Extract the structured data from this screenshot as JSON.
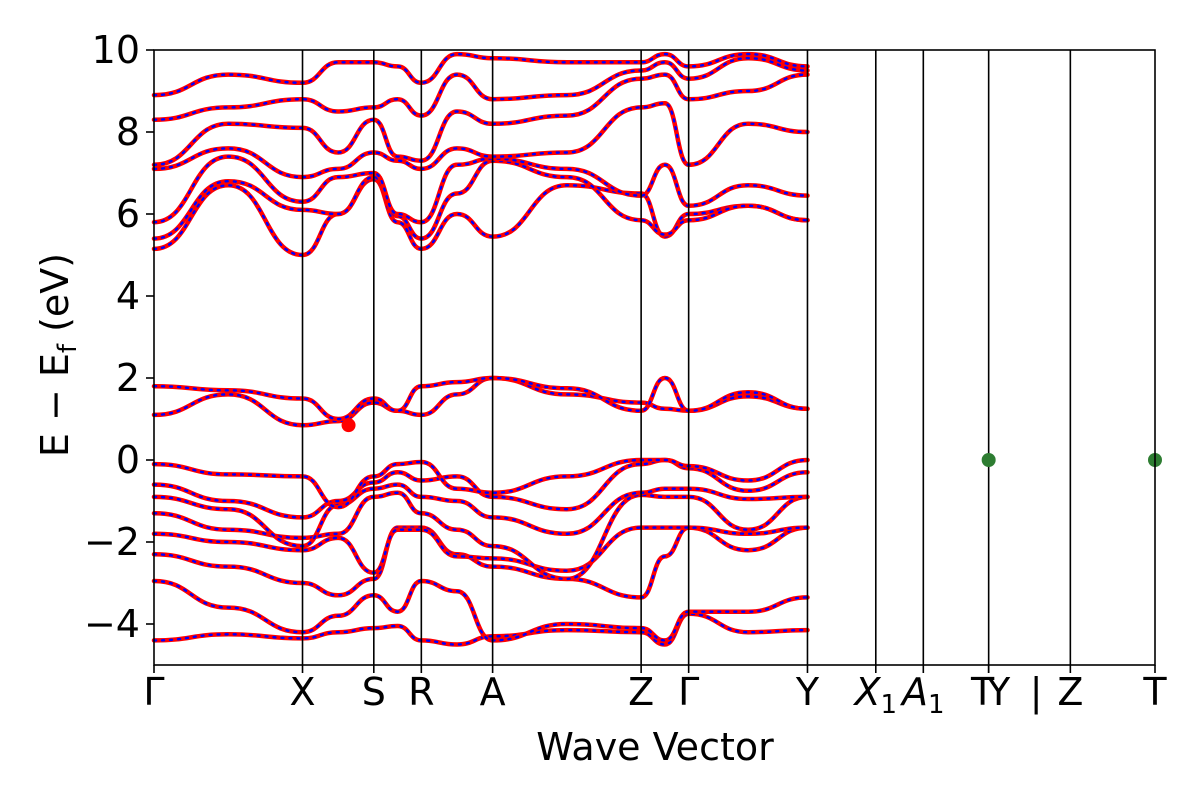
{
  "chart_data": {
    "type": "line",
    "xlabel": "Wave Vector",
    "ylabel": "E − E",
    "ylabel_subscript": "f",
    "ylabel_unit": "(eV)",
    "ylim": [
      -5,
      10
    ],
    "yticks": [
      -4,
      -2,
      0,
      2,
      4,
      6,
      8,
      10
    ],
    "ytick_labels": [
      "−4",
      "−2",
      "0",
      "2",
      "4",
      "6",
      "8",
      "10"
    ],
    "kpath": [
      {
        "label": "Γ",
        "x": 0.0
      },
      {
        "label": "X",
        "x": 1.0
      },
      {
        "label": "S",
        "x": 1.48
      },
      {
        "label": "R",
        "x": 1.8
      },
      {
        "label": "A",
        "x": 2.28
      },
      {
        "label": "Z",
        "x": 3.28
      },
      {
        "label": "Γ",
        "x": 3.6
      },
      {
        "label": "Y",
        "x": 4.4
      },
      {
        "label": "X",
        "sub": "1",
        "x": 4.86
      },
      {
        "label": "A",
        "sub": "1",
        "x": 5.18
      },
      {
        "label": "T",
        "x": 5.62
      },
      {
        "label": "Y",
        "x": 5.62
      },
      {
        "label": "|",
        "x": 5.94
      },
      {
        "label": "Z",
        "x": 6.17
      },
      {
        "label": "T",
        "x": 6.74
      }
    ],
    "xlim": [
      0,
      6.74
    ],
    "segment_breaks": [
      0,
      1.0,
      1.48,
      1.8,
      2.28,
      3.28,
      3.6,
      4.4,
      4.86,
      5.18,
      5.62,
      5.94,
      6.74
    ],
    "series_styles": [
      {
        "style": "solid",
        "color": "#ff0000"
      },
      {
        "style": "dotted",
        "color": "#0000ff"
      }
    ],
    "bands": [
      {
        "knots": [
          -4.4,
          -4.25,
          -4.35,
          -4.2,
          -4.1,
          -4.05,
          -4.4,
          -4.5,
          -4.3,
          -4.15,
          -4.2,
          -4.5,
          -3.75,
          -4.2,
          -4.15
        ]
      },
      {
        "knots": [
          -2.95,
          -3.6,
          -4.2,
          -3.8,
          -3.3,
          -3.7,
          -2.95,
          -3.2,
          -4.4,
          -4.0,
          -4.1,
          -4.4,
          -3.7,
          -3.7,
          -3.35
        ]
      },
      {
        "knots": [
          -2.3,
          -2.6,
          -3.0,
          -3.3,
          -2.9,
          -1.65,
          -1.65,
          -2.3,
          -2.6,
          -2.9,
          -3.35,
          -2.35,
          -1.65,
          -2.2,
          -1.65
        ]
      },
      {
        "knots": [
          -1.8,
          -2.0,
          -2.2,
          -1.9,
          -2.75,
          -1.7,
          -1.7,
          -2.35,
          -2.4,
          -2.7,
          -1.65,
          -1.65,
          -1.65,
          -1.8,
          -1.65
        ]
      },
      {
        "knots": [
          -1.3,
          -1.7,
          -1.9,
          -1.8,
          -0.9,
          -0.8,
          -1.3,
          -1.7,
          -2.1,
          -2.9,
          -0.85,
          -0.9,
          -0.9,
          -1.7,
          -0.9
        ]
      },
      {
        "knots": [
          -0.9,
          -1.2,
          -2.1,
          -1.1,
          -0.7,
          -0.6,
          -0.9,
          -1.0,
          -1.4,
          -1.8,
          -0.8,
          -0.7,
          -0.7,
          -0.95,
          -0.9
        ]
      },
      {
        "knots": [
          -0.6,
          -1.0,
          -1.4,
          -1.0,
          -0.55,
          -0.3,
          -0.5,
          -0.4,
          -0.9,
          -1.2,
          -0.1,
          0.0,
          -0.2,
          -0.75,
          -0.3
        ]
      },
      {
        "knots": [
          -0.1,
          -0.35,
          -0.4,
          -1.15,
          -0.4,
          -0.1,
          -0.05,
          -0.7,
          -0.8,
          -0.4,
          0.0,
          0.0,
          -0.15,
          -0.5,
          0.0
        ]
      },
      {
        "knots": [
          1.1,
          1.6,
          0.85,
          0.95,
          1.4,
          1.2,
          1.1,
          1.6,
          2.0,
          1.6,
          1.4,
          1.25,
          1.2,
          1.55,
          1.25
        ]
      },
      {
        "knots": [
          1.8,
          1.7,
          1.5,
          1.0,
          1.5,
          1.2,
          1.8,
          1.9,
          2.0,
          1.75,
          1.2,
          2.0,
          1.2,
          1.65,
          1.25
        ]
      },
      {
        "knots": [
          5.15,
          6.7,
          5.0,
          6.0,
          6.85,
          5.8,
          5.15,
          6.0,
          5.45,
          6.7,
          6.5,
          5.45,
          6.0,
          6.2,
          5.85
        ]
      },
      {
        "knots": [
          5.4,
          6.8,
          6.1,
          6.0,
          6.9,
          5.95,
          5.4,
          6.5,
          7.3,
          6.9,
          5.85,
          5.5,
          5.85,
          6.2,
          5.85
        ]
      },
      {
        "knots": [
          5.8,
          7.4,
          6.3,
          6.9,
          7.0,
          6.0,
          5.8,
          7.2,
          7.35,
          7.1,
          6.45,
          7.2,
          6.2,
          6.7,
          6.45
        ]
      },
      {
        "knots": [
          7.1,
          7.6,
          6.9,
          7.1,
          7.5,
          7.3,
          7.1,
          7.6,
          7.4,
          7.5,
          8.6,
          8.7,
          7.2,
          8.2,
          8.0
        ]
      },
      {
        "knots": [
          7.2,
          8.2,
          8.1,
          7.5,
          8.3,
          7.4,
          7.3,
          8.5,
          8.2,
          8.4,
          9.3,
          9.4,
          8.8,
          9.0,
          9.4
        ]
      },
      {
        "knots": [
          8.3,
          8.6,
          8.8,
          8.5,
          8.6,
          8.8,
          8.4,
          9.4,
          8.8,
          8.9,
          9.5,
          9.7,
          9.3,
          9.8,
          9.5
        ]
      },
      {
        "knots": [
          8.9,
          9.4,
          9.2,
          9.7,
          9.7,
          9.6,
          9.2,
          9.9,
          9.8,
          9.7,
          9.7,
          9.9,
          9.6,
          9.9,
          9.6
        ]
      }
    ],
    "markers": [
      {
        "x": 1.31,
        "y": 0.85,
        "color": "#ff0000"
      },
      {
        "x": 5.62,
        "y": 0.0,
        "color": "#2e7d32"
      },
      {
        "x": 6.74,
        "y": 0.0,
        "color": "#2e7d32"
      }
    ]
  }
}
